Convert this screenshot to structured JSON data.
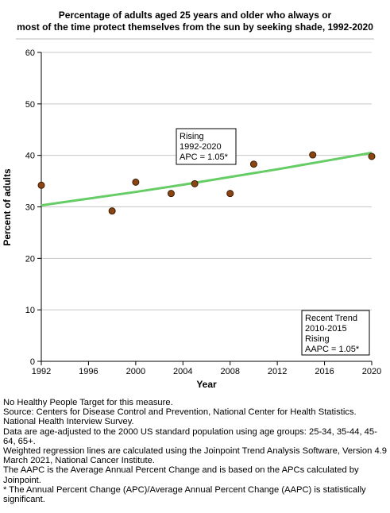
{
  "chart_data": {
    "type": "scatter",
    "title_lines": [
      "Percentage of adults aged 25 years and older who always or",
      "most of the time protect themselves from the sun by seeking shade, 1992-2020"
    ],
    "xlabel": "Year",
    "ylabel": "Percent of adults",
    "xlim": [
      1992,
      2020
    ],
    "ylim": [
      0,
      60
    ],
    "x_ticks": [
      1992,
      1996,
      2000,
      2004,
      2008,
      2012,
      2016,
      2020
    ],
    "y_ticks": [
      0,
      10,
      20,
      30,
      40,
      50,
      60
    ],
    "grid": "horizontal",
    "series": [
      {
        "points": [
          {
            "x": 1992,
            "y": 34.2
          },
          {
            "x": 1998,
            "y": 29.2
          },
          {
            "x": 2000,
            "y": 34.8
          },
          {
            "x": 2003,
            "y": 32.6
          },
          {
            "x": 2005,
            "y": 34.5
          },
          {
            "x": 2008,
            "y": 32.6
          },
          {
            "x": 2010,
            "y": 38.3
          },
          {
            "x": 2015,
            "y": 40.1
          },
          {
            "x": 2020,
            "y": 39.8
          }
        ],
        "color": "#8b4513"
      }
    ],
    "trend_line": {
      "x": [
        1992,
        1996,
        2000,
        2004,
        2008,
        2012,
        2016,
        2020
      ],
      "y": [
        30.3,
        31.6,
        32.9,
        34.3,
        35.8,
        37.3,
        38.9,
        40.5
      ],
      "color": "#66cc66"
    },
    "annotations": [
      {
        "lines": [
          "Rising",
          "1992-2020",
          "APC =  1.05*"
        ]
      },
      {
        "lines": [
          "Recent Trend",
          "2010-2015",
          "Rising",
          "AAPC =  1.05*"
        ]
      }
    ]
  },
  "footnotes": [
    "No Healthy People Target for this measure.",
    "Source: Centers for Disease Control and Prevention, National Center for Health Statistics. National Health Interview Survey.",
    "Data are age-adjusted to the 2000 US standard population using age groups: 25-34, 35-44, 45-64, 65+.",
    "Weighted regression lines are calculated using the Joinpoint Trend Analysis Software, Version 4.9 March 2021, National Cancer Institute.",
    "The AAPC is the Average Annual Percent Change and is based on the APCs calculated by Joinpoint.",
    "* The Annual Percent Change (APC)/Average Annual Percent Change (AAPC) is statistically significant."
  ]
}
